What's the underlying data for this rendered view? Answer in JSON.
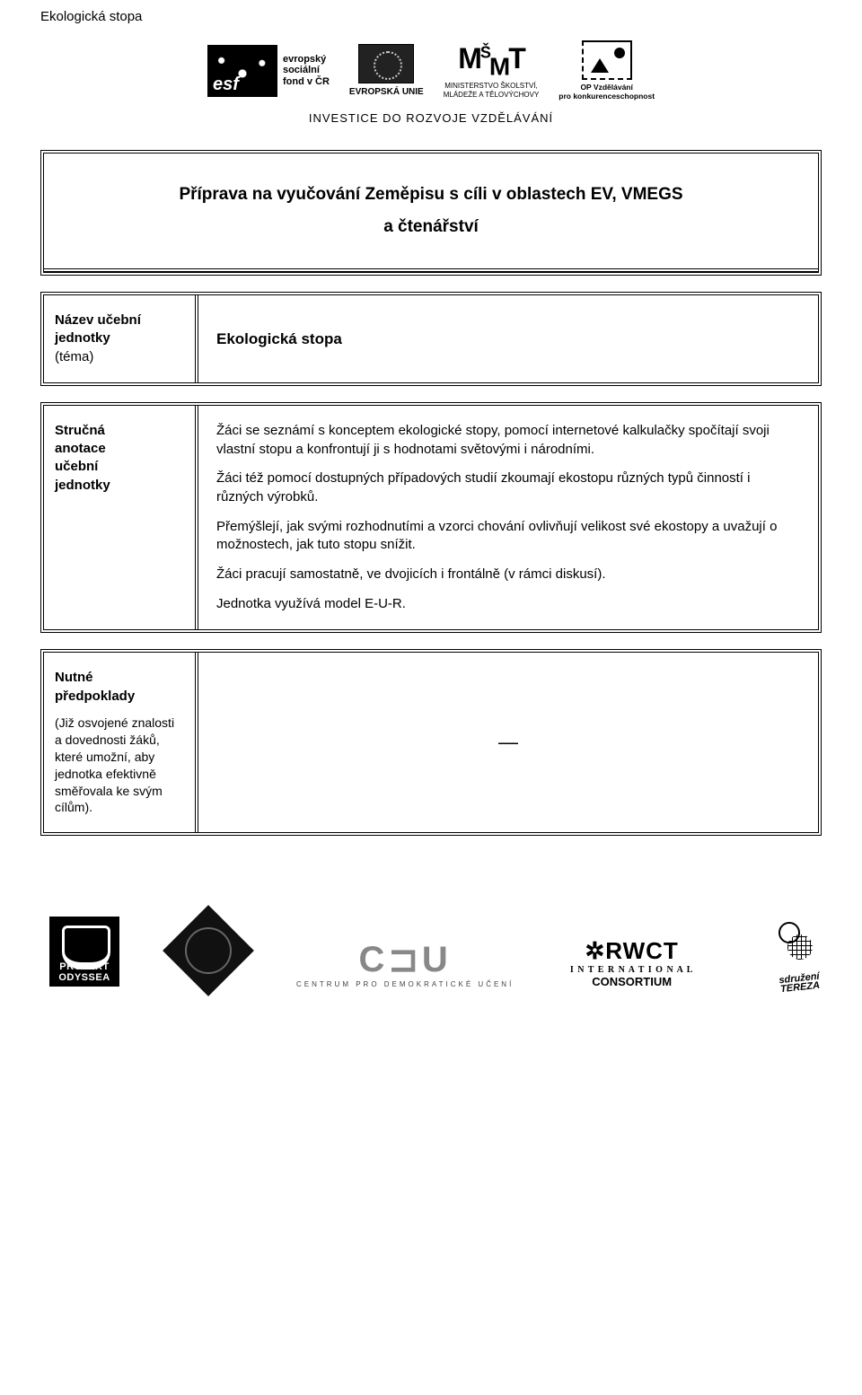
{
  "doc_title": "Ekologická stopa",
  "header_logos": {
    "esf_text": "evropský\nsociální\nfond v ČR",
    "eu_text": "EVROPSKÁ UNIE",
    "msmt_big": "MŠMT",
    "msmt_line1": "MINISTERSTVO ŠKOLSTVÍ,",
    "msmt_line2": "MLÁDEŽE A TĚLOVÝCHOVY",
    "op_line1": "OP Vzdělávání",
    "op_line2": "pro konkurenceschopnost"
  },
  "invest_line": "INVESTICE DO ROZVOJE VZDĚLÁVÁNÍ",
  "title_line1": "Příprava na vyučování Zeměpisu s cíli v oblastech EV, VMEGS",
  "title_line2": "a čtenářství",
  "row1": {
    "label_l1": "Název učební",
    "label_l2": "jednotky",
    "label_l3": "(téma)",
    "value": "Ekologická stopa"
  },
  "row2": {
    "label_l1": "Stručná",
    "label_l2": "anotace",
    "label_l3": "učební",
    "label_l4": "jednotky",
    "p1": "Žáci se seznámí s konceptem ekologické stopy, pomocí internetové kalkulačky spočítají svoji vlastní stopu a konfrontují ji s hodnotami světovými i národními.",
    "p2": "Žáci též pomocí dostupných případových studií zkoumají ekostopu různých typů činností i různých výrobků.",
    "p3": "Přemýšlejí, jak svými rozhodnutími a vzorci chování ovlivňují velikost své ekostopy a uvažují o možnostech, jak tuto stopu snížit.",
    "p4": "Žáci pracují samostatně, ve dvojicích i frontálně (v rámci diskusí).",
    "p5": "Jednotka využívá model E-U-R."
  },
  "row3": {
    "label_l1": "Nutné",
    "label_l2": "předpoklady",
    "sub": "(Již osvojené znalosti a dovednosti žáků, které umožní, aby jednotka efektivně směřovala ke svým cílům).",
    "value": "—"
  },
  "footer_logos": {
    "cdu": "C⊐U",
    "cdu_sub": "CENTRUM PRO DEMOKRATICKÉ UČENÍ",
    "rwct": "✲RWCT",
    "rwct_sub1": "I N T E R N A T I O N A L",
    "rwct_sub2": "CONSORTIUM",
    "tereza1": "sdružení",
    "tereza2": "TEREZA"
  }
}
